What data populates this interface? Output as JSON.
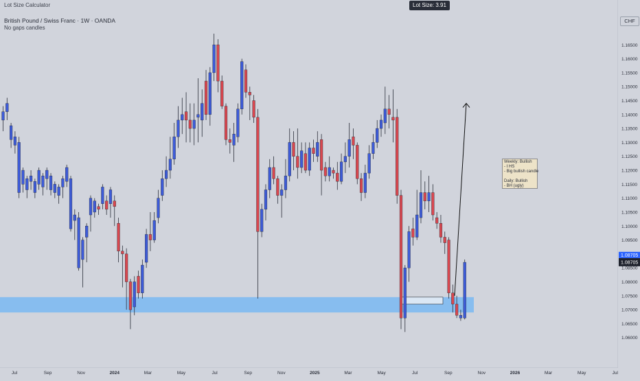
{
  "header": {
    "indicator": "Lot Size Calculator",
    "symbol": "British Pound / Swiss Franc · 1W · OANDA",
    "subtitle": "No gaps candles"
  },
  "lot_size_label": "Lot Size: 3.91",
  "currency_button": "CHF",
  "price_label": "1.08705",
  "note": {
    "lines": [
      "Weekly: Bullish",
      "- I HS",
      "- Big bullish candle",
      "",
      "Daily: Bullish",
      "- BH (ugly)"
    ]
  },
  "colors": {
    "background": "#d1d4dc",
    "bull": "#3d5bd8",
    "bear": "#d9474f",
    "zone": "#7ab8f2",
    "price_tag": "#1e222d"
  },
  "chart_data": {
    "type": "candlestick",
    "ylim": [
      1.0555,
      1.1695
    ],
    "y_ticks": [
      "1.06000",
      "1.06500",
      "1.07000",
      "1.07500",
      "1.08000",
      "1.08500",
      "1.09000",
      "1.09500",
      "1.10000",
      "1.10500",
      "1.11000",
      "1.11500",
      "1.12000",
      "1.12500",
      "1.13000",
      "1.13500",
      "1.14000",
      "1.14500",
      "1.15000",
      "1.15500",
      "1.16000",
      "1.16500"
    ],
    "x_ticks": [
      "Jul",
      "Sep",
      "Nov",
      "2024",
      "Mar",
      "May",
      "Jul",
      "Sep",
      "Nov",
      "2025",
      "Mar",
      "May",
      "Jul",
      "Sep",
      "Nov",
      "2026",
      "Mar",
      "May",
      "Jul"
    ],
    "support_zone": [
      1.069,
      1.0745
    ],
    "current_price": 1.08705,
    "candles": [
      [
        1.138,
        1.141,
        1.134,
        1.143
      ],
      [
        1.141,
        1.144,
        1.138,
        1.146
      ],
      [
        1.131,
        1.136,
        1.128,
        1.137
      ],
      [
        1.129,
        1.132,
        1.126,
        1.134
      ],
      [
        1.112,
        1.13,
        1.11,
        1.132
      ],
      [
        1.115,
        1.12,
        1.112,
        1.121
      ],
      [
        1.113,
        1.117,
        1.11,
        1.118
      ],
      [
        1.116,
        1.118,
        1.113,
        1.12
      ],
      [
        1.112,
        1.116,
        1.11,
        1.117
      ],
      [
        1.115,
        1.12,
        1.113,
        1.121
      ],
      [
        1.114,
        1.118,
        1.111,
        1.119
      ],
      [
        1.117,
        1.12,
        1.113,
        1.121
      ],
      [
        1.113,
        1.118,
        1.111,
        1.119
      ],
      [
        1.112,
        1.115,
        1.11,
        1.116
      ],
      [
        1.111,
        1.114,
        1.108,
        1.115
      ],
      [
        1.114,
        1.117,
        1.11,
        1.118
      ],
      [
        1.116,
        1.121,
        1.114,
        1.122
      ],
      [
        1.099,
        1.117,
        1.098,
        1.118
      ],
      [
        1.102,
        1.104,
        1.095,
        1.106
      ],
      [
        1.085,
        1.103,
        1.084,
        1.105
      ],
      [
        1.088,
        1.095,
        1.078,
        1.096
      ],
      [
        1.096,
        1.1,
        1.087,
        1.101
      ],
      [
        1.104,
        1.11,
        1.098,
        1.111
      ],
      [
        1.105,
        1.109,
        1.103,
        1.11
      ],
      [
        1.107,
        1.106,
        1.104,
        1.108
      ],
      [
        1.108,
        1.114,
        1.106,
        1.115
      ],
      [
        1.109,
        1.106,
        1.104,
        1.111
      ],
      [
        1.108,
        1.113,
        1.103,
        1.114
      ],
      [
        1.109,
        1.107,
        1.1,
        1.111
      ],
      [
        1.101,
        1.091,
        1.087,
        1.103
      ],
      [
        1.091,
        1.09,
        1.078,
        1.093
      ],
      [
        1.09,
        1.08,
        1.07,
        1.092
      ],
      [
        1.08,
        1.07,
        1.063,
        1.081
      ],
      [
        1.071,
        1.08,
        1.068,
        1.082
      ],
      [
        1.082,
        1.076,
        1.074,
        1.084
      ],
      [
        1.076,
        1.086,
        1.074,
        1.088
      ],
      [
        1.087,
        1.097,
        1.085,
        1.099
      ],
      [
        1.097,
        1.095,
        1.091,
        1.105
      ],
      [
        1.095,
        1.102,
        1.094,
        1.105
      ],
      [
        1.103,
        1.11,
        1.101,
        1.113
      ],
      [
        1.111,
        1.117,
        1.109,
        1.12
      ],
      [
        1.117,
        1.12,
        1.114,
        1.125
      ],
      [
        1.12,
        1.124,
        1.117,
        1.132
      ],
      [
        1.124,
        1.132,
        1.122,
        1.137
      ],
      [
        1.132,
        1.138,
        1.128,
        1.143
      ],
      [
        1.138,
        1.14,
        1.133,
        1.146
      ],
      [
        1.141,
        1.138,
        1.13,
        1.148
      ],
      [
        1.138,
        1.135,
        1.13,
        1.144
      ],
      [
        1.135,
        1.138,
        1.129,
        1.144
      ],
      [
        1.139,
        1.14,
        1.13,
        1.153
      ],
      [
        1.138,
        1.144,
        1.132,
        1.149
      ],
      [
        1.152,
        1.14,
        1.138,
        1.156
      ],
      [
        1.14,
        1.155,
        1.136,
        1.157
      ],
      [
        1.155,
        1.165,
        1.152,
        1.169
      ],
      [
        1.165,
        1.152,
        1.148,
        1.167
      ],
      [
        1.152,
        1.143,
        1.142,
        1.154
      ],
      [
        1.143,
        1.131,
        1.129,
        1.144
      ],
      [
        1.131,
        1.13,
        1.126,
        1.135
      ],
      [
        1.129,
        1.133,
        1.123,
        1.137
      ],
      [
        1.132,
        1.142,
        1.13,
        1.144
      ],
      [
        1.142,
        1.159,
        1.14,
        1.16
      ],
      [
        1.156,
        1.148,
        1.146,
        1.158
      ],
      [
        1.148,
        1.147,
        1.138,
        1.15
      ],
      [
        1.145,
        1.139,
        1.137,
        1.147
      ],
      [
        1.139,
        1.098,
        1.074,
        1.142
      ],
      [
        1.098,
        1.106,
        1.096,
        1.108
      ],
      [
        1.106,
        1.113,
        1.102,
        1.115
      ],
      [
        1.113,
        1.121,
        1.11,
        1.124
      ],
      [
        1.121,
        1.117,
        1.115,
        1.125
      ],
      [
        1.117,
        1.111,
        1.108,
        1.118
      ],
      [
        1.111,
        1.113,
        1.103,
        1.115
      ],
      [
        1.113,
        1.118,
        1.11,
        1.124
      ],
      [
        1.118,
        1.13,
        1.116,
        1.135
      ],
      [
        1.13,
        1.125,
        1.12,
        1.134
      ],
      [
        1.125,
        1.121,
        1.117,
        1.135
      ],
      [
        1.121,
        1.127,
        1.119,
        1.13
      ],
      [
        1.126,
        1.12,
        1.119,
        1.13
      ],
      [
        1.12,
        1.128,
        1.118,
        1.13
      ],
      [
        1.128,
        1.126,
        1.123,
        1.131
      ],
      [
        1.125,
        1.13,
        1.123,
        1.134
      ],
      [
        1.131,
        1.12,
        1.111,
        1.133
      ],
      [
        1.121,
        1.118,
        1.116,
        1.123
      ],
      [
        1.118,
        1.121,
        1.116,
        1.125
      ],
      [
        1.12,
        1.119,
        1.117,
        1.121
      ],
      [
        1.119,
        1.116,
        1.113,
        1.123
      ],
      [
        1.116,
        1.123,
        1.115,
        1.126
      ],
      [
        1.123,
        1.125,
        1.119,
        1.13
      ],
      [
        1.125,
        1.131,
        1.121,
        1.137
      ],
      [
        1.132,
        1.129,
        1.124,
        1.135
      ],
      [
        1.129,
        1.117,
        1.115,
        1.13
      ],
      [
        1.117,
        1.112,
        1.109,
        1.119
      ],
      [
        1.112,
        1.119,
        1.11,
        1.122
      ],
      [
        1.119,
        1.126,
        1.117,
        1.129
      ],
      [
        1.126,
        1.13,
        1.124,
        1.133
      ],
      [
        1.13,
        1.135,
        1.128,
        1.138
      ],
      [
        1.135,
        1.138,
        1.132,
        1.14
      ],
      [
        1.137,
        1.142,
        1.133,
        1.15
      ],
      [
        1.142,
        1.14,
        1.135,
        1.147
      ],
      [
        1.139,
        1.138,
        1.13,
        1.149
      ],
      [
        1.139,
        1.111,
        1.108,
        1.142
      ],
      [
        1.111,
        1.067,
        1.063,
        1.113
      ],
      [
        1.067,
        1.085,
        1.062,
        1.086
      ],
      [
        1.085,
        1.098,
        1.08,
        1.1
      ],
      [
        1.099,
        1.096,
        1.093,
        1.103
      ],
      [
        1.096,
        1.104,
        1.095,
        1.113
      ],
      [
        1.103,
        1.112,
        1.101,
        1.12
      ],
      [
        1.112,
        1.109,
        1.106,
        1.116
      ],
      [
        1.109,
        1.112,
        1.105,
        1.118
      ],
      [
        1.112,
        1.104,
        1.102,
        1.115
      ],
      [
        1.103,
        1.101,
        1.099,
        1.105
      ],
      [
        1.101,
        1.096,
        1.094,
        1.104
      ],
      [
        1.096,
        1.094,
        1.09,
        1.098
      ],
      [
        1.095,
        1.076,
        1.074,
        1.096
      ],
      [
        1.076,
        1.072,
        1.069,
        1.079
      ],
      [
        1.072,
        1.068,
        1.067,
        1.075
      ],
      [
        1.067,
        1.068,
        1.066,
        1.07
      ],
      [
        1.067,
        1.087,
        1.0665,
        1.088
      ]
    ]
  }
}
